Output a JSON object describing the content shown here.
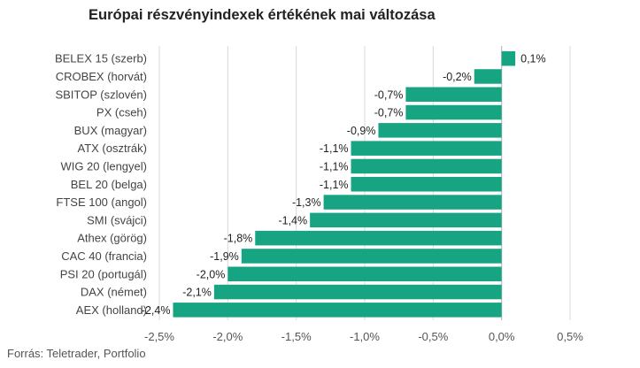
{
  "chart_data": {
    "type": "bar",
    "orientation": "horizontal",
    "title": "Európai részvényindexek értékének mai változása",
    "source": "Forrás: Teletrader, Portfolio",
    "categories": [
      "BELEX 15 (szerb)",
      "CROBEX (horvát)",
      "SBITOP (szlovén)",
      "PX (cseh)",
      "BUX (magyar)",
      "ATX (osztrák)",
      "WIG 20 (lengyel)",
      "BEL 20 (belga)",
      "FTSE 100 (angol)",
      "SMI (svájci)",
      "Athex (görög)",
      "CAC 40 (francia)",
      "PSI 20 (portugál)",
      "DAX (német)",
      "AEX (holland)"
    ],
    "values": [
      0.1,
      -0.2,
      -0.7,
      -0.7,
      -0.9,
      -1.1,
      -1.1,
      -1.1,
      -1.3,
      -1.4,
      -1.8,
      -1.9,
      -2.0,
      -2.1,
      -2.4
    ],
    "value_labels": [
      "0,1%",
      "-0,2%",
      "-0,7%",
      "-0,7%",
      "-0,9%",
      "-1,1%",
      "-1,1%",
      "-1,1%",
      "-1,3%",
      "-1,4%",
      "-1,8%",
      "-1,9%",
      "-2,0%",
      "-2,1%",
      "-2,4%"
    ],
    "xlim": [
      -2.5,
      0.5
    ],
    "ticks": [
      -2.5,
      -2.0,
      -1.5,
      -1.0,
      -0.5,
      0.0,
      0.5
    ],
    "tick_labels": [
      "-2,5%",
      "-2,0%",
      "-1,5%",
      "-1,0%",
      "-0,5%",
      "0,0%",
      "0,5%"
    ],
    "grid": "vertical",
    "bar_color": "#16a482",
    "grid_color": "#d9d9d9",
    "axis_color": "#bbbbbb"
  }
}
